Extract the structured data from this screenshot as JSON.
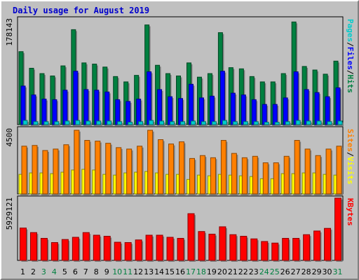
{
  "chart_data": {
    "type": "bar",
    "title": "Daily usage for August 2019",
    "categories": [
      "1",
      "2",
      "3",
      "4",
      "5",
      "6",
      "7",
      "8",
      "9",
      "10",
      "11",
      "12",
      "13",
      "14",
      "15",
      "16",
      "17",
      "18",
      "19",
      "20",
      "21",
      "22",
      "23",
      "24",
      "25",
      "26",
      "27",
      "28",
      "29",
      "30",
      "31"
    ],
    "weekend_days": [
      "3",
      "4",
      "10",
      "11",
      "17",
      "18",
      "24",
      "25",
      "31"
    ],
    "panels": [
      {
        "max_label": "178143",
        "ylim": [
          0,
          178143
        ],
        "legend": [
          {
            "text": "Pages",
            "color": "#00cccc"
          },
          {
            "text": "/",
            "color": "#000000"
          },
          {
            "text": "Files",
            "color": "#0000ff"
          },
          {
            "text": "/",
            "color": "#000000"
          },
          {
            "text": "Hits",
            "color": "#008040"
          }
        ],
        "series": [
          {
            "name": "Hits",
            "color": "#008040",
            "values": [
              123000,
              95000,
              86000,
              82000,
              99000,
              160000,
              104000,
              102000,
              97000,
              81000,
              72000,
              83000,
              168000,
              100000,
              86000,
              82000,
              104000,
              80000,
              86000,
              155000,
              96000,
              94000,
              81000,
              72000,
              72000,
              86000,
              173000,
              98000,
              92000,
              85000,
              107000
            ]
          },
          {
            "name": "Files",
            "color": "#0000ff",
            "values": [
              65000,
              50000,
              43000,
              42000,
              58000,
              90000,
              59000,
              58000,
              55000,
              42000,
              39000,
              43000,
              89000,
              59000,
              47000,
              44000,
              68000,
              45000,
              48000,
              90000,
              53000,
              50000,
              42000,
              34000,
              34000,
              45000,
              89000,
              59000,
              54000,
              47000,
              62000
            ]
          },
          {
            "name": "Pages",
            "color": "#00cccc",
            "values": [
              7000,
              5000,
              5000,
              5000,
              6000,
              7000,
              6000,
              6000,
              6000,
              5000,
              4000,
              5000,
              7000,
              6000,
              5000,
              5000,
              6000,
              5000,
              5000,
              7000,
              5000,
              5000,
              5000,
              4000,
              4000,
              5000,
              7000,
              6000,
              6000,
              5000,
              6000
            ]
          }
        ]
      },
      {
        "max_label": "4500",
        "ylim": [
          0,
          4500
        ],
        "legend": [
          {
            "text": "Sites",
            "color": "#ff8000"
          },
          {
            "text": "/",
            "color": "#000000"
          },
          {
            "text": "Visits",
            "color": "#ffff00"
          }
        ],
        "series": [
          {
            "name": "Visits",
            "color": "#ffff00",
            "values": [
              1350,
              1450,
              1450,
              1400,
              1500,
              1650,
              1700,
              1650,
              1350,
              1300,
              1450,
              1500,
              1550,
              1450,
              1350,
              1350,
              1000,
              1300,
              1250,
              1350,
              1300,
              1250,
              1200,
              1050,
              1050,
              1400,
              1400,
              1450,
              1450,
              1350,
              1300
            ]
          },
          {
            "name": "Sites",
            "color": "#ff8000",
            "values": [
              3300,
              3350,
              3000,
              3100,
              3400,
              4400,
              3700,
              3650,
              3500,
              3200,
              3100,
              3300,
              4400,
              3750,
              3450,
              3600,
              2450,
              2650,
              2500,
              3700,
              2800,
              2500,
              2600,
              2150,
              2150,
              2600,
              3700,
              3100,
              2650,
              3100,
              3300
            ]
          }
        ]
      },
      {
        "max_label": "5929121",
        "ylim": [
          0,
          5929121
        ],
        "legend": [
          {
            "text": "KBytes",
            "color": "#ff0000"
          }
        ],
        "series": [
          {
            "name": "KBytes",
            "color": "#ff0000",
            "values": [
              3080000,
              2650000,
              2100000,
              1700000,
              1990000,
              2200000,
              2650000,
              2400000,
              2300000,
              1730000,
              1700000,
              1950000,
              2400000,
              2400000,
              2200000,
              2100000,
              4450000,
              2750000,
              2500000,
              3200000,
              2450000,
              2300000,
              2050000,
              1800000,
              1650000,
              2100000,
              2100000,
              2450000,
              2800000,
              3050000,
              5929121
            ]
          }
        ]
      }
    ]
  }
}
